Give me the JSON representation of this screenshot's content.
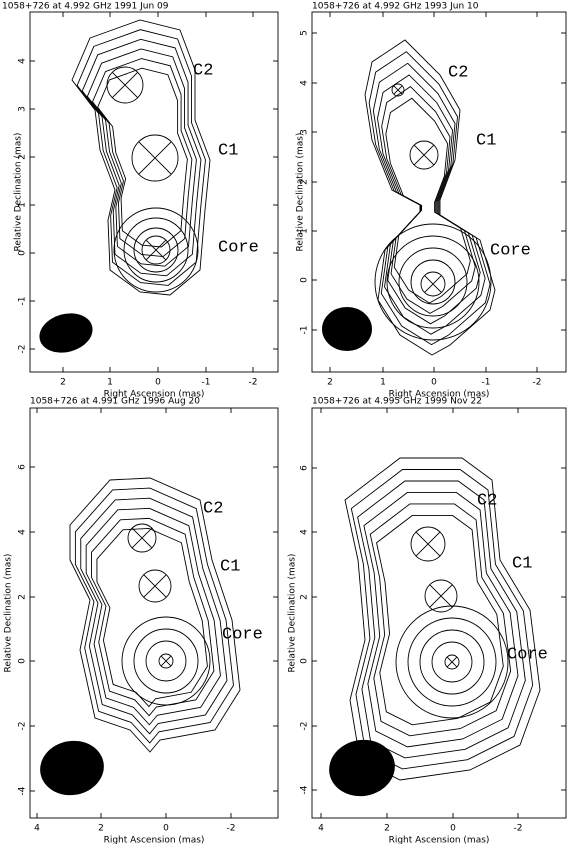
{
  "panels": [
    {
      "title": "1058+726 at 4.992 GHz 1991 Jun 09",
      "x_label": "Right Ascension  (mas)",
      "y_label": "Relative Declination  (mas)",
      "xticks": [
        "2",
        "1",
        "0",
        "-1",
        "-2"
      ],
      "yticks": [
        "4",
        "3",
        "2",
        "1",
        "0",
        "-1",
        "-2"
      ],
      "components": [
        "C2",
        "C1",
        "Core"
      ]
    },
    {
      "title": "1058+726 at 4.992 GHz 1993 Jun 10",
      "x_label": "Right Ascension  (mas)",
      "y_label": "Relative Declination  (mas)",
      "xticks": [
        "2",
        "1",
        "0",
        "-1",
        "-2"
      ],
      "yticks": [
        "5",
        "4",
        "3",
        "2",
        "1",
        "0",
        "-1"
      ],
      "components": [
        "C2",
        "C1",
        "Core"
      ]
    },
    {
      "title": "1058+726 at 4.991 GHz 1996 Aug 20",
      "x_label": "Right Ascension  (mas)",
      "y_label": "Relative Declination  (mas)",
      "xticks": [
        "4",
        "2",
        "0",
        "-2"
      ],
      "yticks": [
        "6",
        "4",
        "2",
        "0",
        "-2",
        "-4"
      ],
      "components": [
        "C2",
        "C1",
        "Core"
      ]
    },
    {
      "title": "1058+726 at 4.995 GHz 1999 Nov 22",
      "x_label": "Right Ascension  (mas)",
      "y_label": "Relative Declination  (mas)",
      "xticks": [
        "4",
        "2",
        "0",
        "-2"
      ],
      "yticks": [
        "6",
        "4",
        "2",
        "0",
        "-2",
        "-4"
      ],
      "components": [
        "C2",
        "C1",
        "Core"
      ]
    }
  ]
}
